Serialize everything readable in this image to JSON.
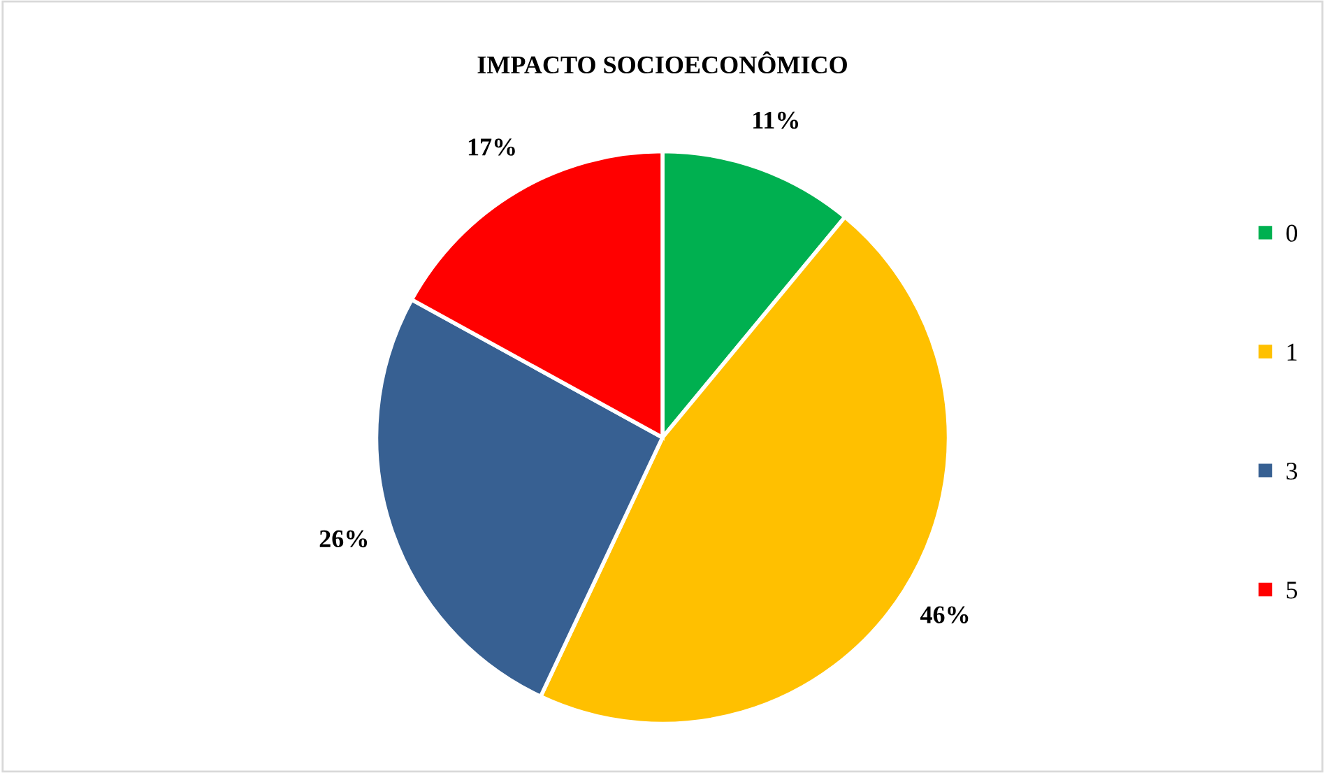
{
  "chart_data": {
    "type": "pie",
    "title": "IMPACTO SOCIOECONÔMICO",
    "categories": [
      "0",
      "1",
      "3",
      "5"
    ],
    "values": [
      11,
      46,
      26,
      17
    ],
    "colors": [
      "#00b050",
      "#ffc000",
      "#376092",
      "#ff0000"
    ],
    "value_labels": [
      "11%",
      "46%",
      "26%",
      "17%"
    ],
    "legend": "right"
  }
}
